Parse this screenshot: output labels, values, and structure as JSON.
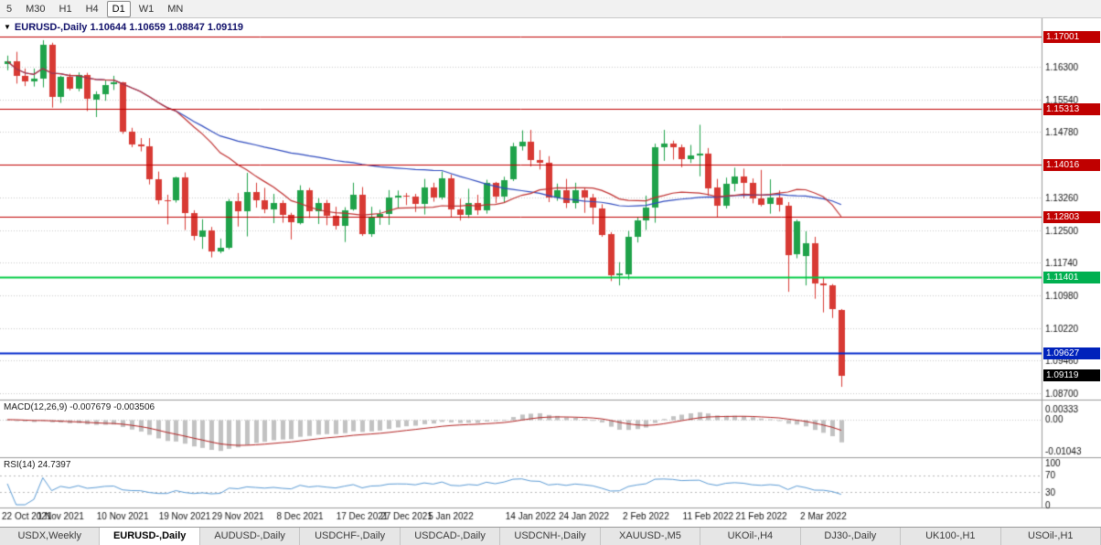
{
  "toolbar": {
    "timeframes": [
      {
        "label": "5",
        "active": false
      },
      {
        "label": "M30",
        "active": false
      },
      {
        "label": "H1",
        "active": false
      },
      {
        "label": "H4",
        "active": false
      },
      {
        "label": "D1",
        "active": true
      },
      {
        "label": "W1",
        "active": false
      },
      {
        "label": "MN",
        "active": false
      }
    ]
  },
  "chart_header": {
    "symbol_line": "EURUSD-,Daily 1.10644 1.10659 1.08847 1.09119"
  },
  "chart_data": {
    "type": "candlestick",
    "symbol": "EURUSD-",
    "timeframe": "Daily",
    "ohlc_display": {
      "open": "1.10644",
      "high": "1.10659",
      "low": "1.08847",
      "close": "1.09119"
    },
    "colors": {
      "bull": "#1fa24a",
      "bear": "#d83a34",
      "grid": "#c8c8c8",
      "axis_line": "#9a9a9a",
      "macd_hist": "#c2c2c2",
      "macd_signal": "#b22222",
      "rsi_line": "#5b9bd5"
    },
    "y_axis": {
      "top": 1.1743,
      "bottom": 1.0855,
      "ticks": [
        {
          "v": 1.163,
          "label": "1.16300"
        },
        {
          "v": 1.1554,
          "label": "1.15540"
        },
        {
          "v": 1.1478,
          "label": "1.14780"
        },
        {
          "v": 1.1402,
          "label": "1.14020"
        },
        {
          "v": 1.1326,
          "label": "1.13260"
        },
        {
          "v": 1.125,
          "label": "1.12500"
        },
        {
          "v": 1.1174,
          "label": "1.11740"
        },
        {
          "v": 1.1098,
          "label": "1.10980"
        },
        {
          "v": 1.1022,
          "label": "1.10220"
        },
        {
          "v": 1.0946,
          "label": "1.09460"
        },
        {
          "v": 1.087,
          "label": "1.08700"
        }
      ]
    },
    "levels": [
      {
        "value": 1.17001,
        "label": "1.17001",
        "color": "#c00000",
        "width": 1
      },
      {
        "value": 1.15313,
        "label": "1.15313",
        "color": "#c00000",
        "width": 1
      },
      {
        "value": 1.14016,
        "label": "1.14016",
        "color": "#c00000",
        "width": 1
      },
      {
        "value": 1.12803,
        "label": "1.12803",
        "color": "#c00000",
        "width": 1
      },
      {
        "value": 1.11401,
        "label": "1.11401",
        "color": "#00b050",
        "width": 2,
        "line_color": "#00cc44"
      },
      {
        "value": 1.09627,
        "label": "1.09627",
        "color": "#0022bb",
        "width": 2,
        "line_color": "#0026cc"
      }
    ],
    "current_price": {
      "value": 1.09119,
      "label": "1.09119",
      "color": "#000000"
    },
    "moving_averages": [
      {
        "period": 50,
        "color": "#2f4bbf"
      },
      {
        "period": 20,
        "color": "#c03030"
      }
    ],
    "x_labels": [
      {
        "i": 0,
        "t": "22 Oct 2021"
      },
      {
        "i": 6,
        "t": "1 Nov 2021"
      },
      {
        "i": 13,
        "t": "10 Nov 2021"
      },
      {
        "i": 20,
        "t": "19 Nov 2021"
      },
      {
        "i": 26,
        "t": "29 Nov 2021"
      },
      {
        "i": 33,
        "t": "8 Dec 2021"
      },
      {
        "i": 40,
        "t": "17 Dec 2021"
      },
      {
        "i": 45,
        "t": "27 Dec 2021"
      },
      {
        "i": 50,
        "t": "5 Jan 2022"
      },
      {
        "i": 59,
        "t": "14 Jan 2022"
      },
      {
        "i": 65,
        "t": "24 Jan 2022"
      },
      {
        "i": 72,
        "t": "2 Feb 2022"
      },
      {
        "i": 79,
        "t": "11 Feb 2022"
      },
      {
        "i": 85,
        "t": "21 Feb 2022"
      },
      {
        "i": 92,
        "t": "2 Mar 2022"
      }
    ],
    "candles": [
      [
        1.1637,
        1.1656,
        1.1622,
        1.1643
      ],
      [
        1.1643,
        1.1665,
        1.1591,
        1.1608
      ],
      [
        1.1608,
        1.1626,
        1.1585,
        1.1596
      ],
      [
        1.1596,
        1.1626,
        1.1584,
        1.1603
      ],
      [
        1.1603,
        1.1692,
        1.1582,
        1.1681
      ],
      [
        1.1681,
        1.1686,
        1.1535,
        1.156
      ],
      [
        1.156,
        1.1609,
        1.1546,
        1.1606
      ],
      [
        1.1606,
        1.1614,
        1.1575,
        1.1579
      ],
      [
        1.1579,
        1.1617,
        1.1573,
        1.161
      ],
      [
        1.161,
        1.1616,
        1.1527,
        1.1554
      ],
      [
        1.1554,
        1.1573,
        1.1513,
        1.1567
      ],
      [
        1.1567,
        1.1598,
        1.1551,
        1.1588
      ],
      [
        1.1588,
        1.1609,
        1.1576,
        1.1593
      ],
      [
        1.1593,
        1.1595,
        1.1474,
        1.1478
      ],
      [
        1.1478,
        1.1488,
        1.1443,
        1.1449
      ],
      [
        1.1449,
        1.1464,
        1.1433,
        1.1445
      ],
      [
        1.1445,
        1.1464,
        1.1356,
        1.1369
      ],
      [
        1.1369,
        1.1386,
        1.131,
        1.132
      ],
      [
        1.132,
        1.1332,
        1.1263,
        1.1319
      ],
      [
        1.1319,
        1.1374,
        1.1314,
        1.1373
      ],
      [
        1.1373,
        1.1384,
        1.125,
        1.1289
      ],
      [
        1.1289,
        1.1296,
        1.1226,
        1.1236
      ],
      [
        1.1236,
        1.1275,
        1.1206,
        1.125
      ],
      [
        1.125,
        1.1257,
        1.1186,
        1.12
      ],
      [
        1.12,
        1.123,
        1.1196,
        1.1209
      ],
      [
        1.1209,
        1.1322,
        1.1205,
        1.1317
      ],
      [
        1.1317,
        1.1336,
        1.1258,
        1.1294
      ],
      [
        1.1294,
        1.1383,
        1.1235,
        1.1339
      ],
      [
        1.1339,
        1.136,
        1.1302,
        1.1319
      ],
      [
        1.1319,
        1.1348,
        1.1289,
        1.1298
      ],
      [
        1.1298,
        1.1334,
        1.1266,
        1.1313
      ],
      [
        1.1313,
        1.1319,
        1.1267,
        1.1285
      ],
      [
        1.1285,
        1.129,
        1.1228,
        1.1267
      ],
      [
        1.1267,
        1.1354,
        1.1263,
        1.1343
      ],
      [
        1.1343,
        1.1348,
        1.1278,
        1.1294
      ],
      [
        1.1294,
        1.1324,
        1.1264,
        1.1313
      ],
      [
        1.1313,
        1.132,
        1.1261,
        1.1284
      ],
      [
        1.1284,
        1.1304,
        1.1251,
        1.126
      ],
      [
        1.126,
        1.1303,
        1.1222,
        1.1296
      ],
      [
        1.1296,
        1.136,
        1.1295,
        1.1331
      ],
      [
        1.1331,
        1.135,
        1.1236,
        1.1239
      ],
      [
        1.1239,
        1.1304,
        1.1234,
        1.128
      ],
      [
        1.128,
        1.1297,
        1.1262,
        1.1287
      ],
      [
        1.1287,
        1.1343,
        1.1262,
        1.1325
      ],
      [
        1.1325,
        1.1342,
        1.13,
        1.133
      ],
      [
        1.133,
        1.1336,
        1.1308,
        1.1327
      ],
      [
        1.1327,
        1.1334,
        1.1292,
        1.131
      ],
      [
        1.131,
        1.1369,
        1.1286,
        1.1349
      ],
      [
        1.1349,
        1.136,
        1.1316,
        1.1325
      ],
      [
        1.1325,
        1.1386,
        1.1321,
        1.137
      ],
      [
        1.137,
        1.1379,
        1.1279,
        1.1297
      ],
      [
        1.1297,
        1.1323,
        1.1272,
        1.1285
      ],
      [
        1.1285,
        1.1346,
        1.1278,
        1.1312
      ],
      [
        1.1312,
        1.1332,
        1.1285,
        1.1296
      ],
      [
        1.1296,
        1.1367,
        1.1288,
        1.136
      ],
      [
        1.136,
        1.1362,
        1.1313,
        1.1328
      ],
      [
        1.1328,
        1.1374,
        1.1314,
        1.1367
      ],
      [
        1.1367,
        1.1453,
        1.1364,
        1.1444
      ],
      [
        1.1444,
        1.1482,
        1.1435,
        1.1455
      ],
      [
        1.1455,
        1.1483,
        1.1398,
        1.1413
      ],
      [
        1.1413,
        1.1436,
        1.1391,
        1.1406
      ],
      [
        1.1406,
        1.1422,
        1.1315,
        1.1325
      ],
      [
        1.1325,
        1.1358,
        1.1318,
        1.1343
      ],
      [
        1.1343,
        1.1369,
        1.1301,
        1.1313
      ],
      [
        1.1313,
        1.136,
        1.13,
        1.1343
      ],
      [
        1.1343,
        1.1349,
        1.129,
        1.1325
      ],
      [
        1.1325,
        1.1334,
        1.1263,
        1.1301
      ],
      [
        1.1301,
        1.131,
        1.1234,
        1.124
      ],
      [
        1.124,
        1.1245,
        1.1131,
        1.1144
      ],
      [
        1.1144,
        1.1175,
        1.1121,
        1.1148
      ],
      [
        1.1148,
        1.1248,
        1.1135,
        1.1235
      ],
      [
        1.1235,
        1.1279,
        1.1221,
        1.1273
      ],
      [
        1.1273,
        1.133,
        1.125,
        1.1302
      ],
      [
        1.1302,
        1.1451,
        1.1267,
        1.1443
      ],
      [
        1.1443,
        1.1483,
        1.1411,
        1.1452
      ],
      [
        1.1452,
        1.1458,
        1.1414,
        1.1443
      ],
      [
        1.1443,
        1.1449,
        1.1396,
        1.1416
      ],
      [
        1.1416,
        1.1448,
        1.1406,
        1.1424
      ],
      [
        1.1424,
        1.1495,
        1.1375,
        1.1428
      ],
      [
        1.1428,
        1.1441,
        1.133,
        1.1348
      ],
      [
        1.1348,
        1.1369,
        1.1279,
        1.1306
      ],
      [
        1.1306,
        1.1372,
        1.13,
        1.1358
      ],
      [
        1.1358,
        1.1395,
        1.134,
        1.1374
      ],
      [
        1.1374,
        1.1393,
        1.1324,
        1.136
      ],
      [
        1.136,
        1.137,
        1.1312,
        1.1324
      ],
      [
        1.1324,
        1.139,
        1.1305,
        1.131
      ],
      [
        1.131,
        1.1368,
        1.1288,
        1.1325
      ],
      [
        1.1325,
        1.1342,
        1.1293,
        1.1307
      ],
      [
        1.1307,
        1.1315,
        1.1106,
        1.1193
      ],
      [
        1.1193,
        1.1274,
        1.1184,
        1.127
      ],
      [
        1.119,
        1.1247,
        1.1121,
        1.1219
      ],
      [
        1.1219,
        1.1234,
        1.109,
        1.1125
      ],
      [
        1.1125,
        1.1139,
        1.1058,
        1.1121
      ],
      [
        1.1121,
        1.1124,
        1.1045,
        1.1066
      ],
      [
        1.10644,
        1.10659,
        1.08847,
        1.09119
      ]
    ],
    "macd": {
      "label": "MACD(12,26,9) -0.007679 -0.003506",
      "params": [
        12,
        26,
        9
      ],
      "value": -0.007679,
      "signal": -0.003506,
      "range": [
        -0.0115,
        0.0045
      ],
      "ticks": [
        {
          "v": 0.00333,
          "label": "0.00333"
        },
        {
          "v": 0,
          "label": "0.00"
        },
        {
          "v": -0.01043,
          "label": "-0.01043"
        }
      ]
    },
    "rsi": {
      "label": "RSI(14) 24.7397",
      "period": 14,
      "value": 24.7397,
      "levels": [
        70,
        30
      ],
      "ticks": [
        {
          "v": 100,
          "label": "100"
        },
        {
          "v": 70,
          "label": "70"
        },
        {
          "v": 30,
          "label": "30"
        },
        {
          "v": 0,
          "label": "0"
        }
      ]
    }
  },
  "tabs": [
    {
      "label": "USDX,Weekly",
      "active": false
    },
    {
      "label": "EURUSD-,Daily",
      "active": true
    },
    {
      "label": "AUDUSD-,Daily",
      "active": false
    },
    {
      "label": "USDCHF-,Daily",
      "active": false
    },
    {
      "label": "USDCAD-,Daily",
      "active": false
    },
    {
      "label": "USDCNH-,Daily",
      "active": false
    },
    {
      "label": "XAUUSD-,M5",
      "active": false
    },
    {
      "label": "UKOil-,H4",
      "active": false
    },
    {
      "label": "DJ30-,Daily",
      "active": false
    },
    {
      "label": "UK100-,H1",
      "active": false
    },
    {
      "label": "USOil-,H1",
      "active": false
    }
  ]
}
